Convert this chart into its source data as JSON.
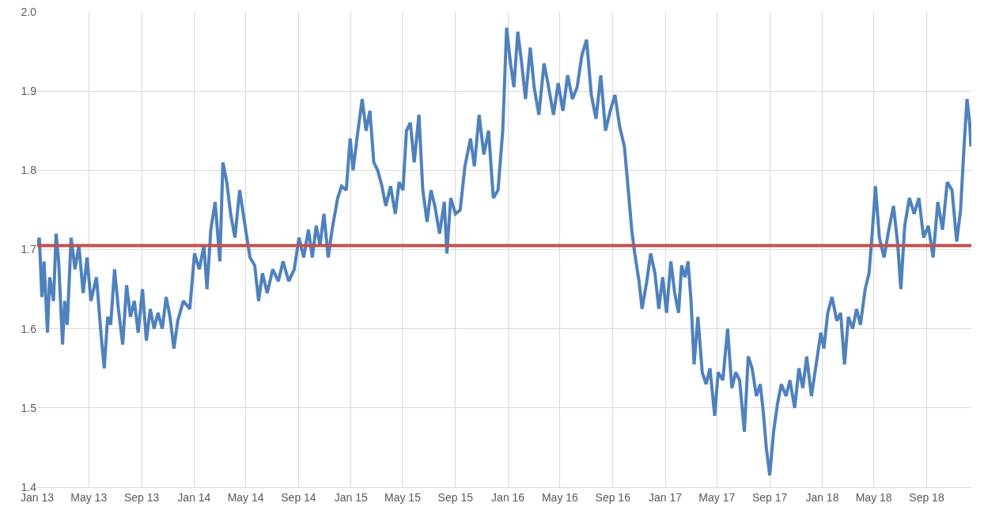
{
  "chart_data": {
    "type": "line",
    "x": [
      "2013-01-01",
      "2013-01-06",
      "2013-01-12",
      "2013-01-17",
      "2013-01-25",
      "2013-01-30",
      "2013-02-08",
      "2013-02-14",
      "2013-02-20",
      "2013-03-01",
      "2013-03-06",
      "2013-03-12",
      "2013-03-21",
      "2013-03-30",
      "2013-04-08",
      "2013-04-18",
      "2013-04-27",
      "2013-05-06",
      "2013-05-19",
      "2013-05-30",
      "2013-06-06",
      "2013-06-14",
      "2013-06-21",
      "2013-06-30",
      "2013-07-09",
      "2013-07-19",
      "2013-07-28",
      "2013-08-06",
      "2013-08-15",
      "2013-08-24",
      "2013-09-03",
      "2013-09-12",
      "2013-09-21",
      "2013-09-30",
      "2013-10-09",
      "2013-10-19",
      "2013-10-28",
      "2013-11-06",
      "2013-11-15",
      "2013-11-24",
      "2013-12-07",
      "2013-12-22",
      "2014-01-02",
      "2014-01-13",
      "2014-01-24",
      "2014-01-31",
      "2014-02-09",
      "2014-02-19",
      "2014-03-02",
      "2014-03-09",
      "2014-03-18",
      "2014-03-27",
      "2014-04-06",
      "2014-04-17",
      "2014-04-24",
      "2014-05-01",
      "2014-05-11",
      "2014-05-22",
      "2014-05-31",
      "2014-06-09",
      "2014-06-20",
      "2014-07-03",
      "2014-07-16",
      "2014-07-27",
      "2014-08-09",
      "2014-08-22",
      "2014-09-02",
      "2014-09-13",
      "2014-09-24",
      "2014-10-03",
      "2014-10-12",
      "2014-10-21",
      "2014-10-30",
      "2014-11-09",
      "2014-11-18",
      "2014-12-01",
      "2014-12-10",
      "2014-12-21",
      "2014-12-30",
      "2015-01-06",
      "2015-01-16",
      "2015-01-27",
      "2015-02-05",
      "2015-02-14",
      "2015-02-23",
      "2015-03-04",
      "2015-03-14",
      "2015-03-23",
      "2015-04-03",
      "2015-04-14",
      "2015-04-23",
      "2015-05-02",
      "2015-05-10",
      "2015-05-19",
      "2015-05-28",
      "2015-06-08",
      "2015-06-17",
      "2015-06-27",
      "2015-07-06",
      "2015-07-15",
      "2015-07-26",
      "2015-08-06",
      "2015-08-12",
      "2015-08-21",
      "2015-09-01",
      "2015-09-12",
      "2015-09-23",
      "2015-10-06",
      "2015-10-15",
      "2015-10-26",
      "2015-11-06",
      "2015-11-17",
      "2015-11-28",
      "2015-12-09",
      "2015-12-20",
      "2015-12-29",
      "2016-01-07",
      "2016-01-15",
      "2016-01-24",
      "2016-02-02",
      "2016-02-11",
      "2016-02-22",
      "2016-03-02",
      "2016-03-13",
      "2016-03-25",
      "2016-04-03",
      "2016-04-16",
      "2016-04-27",
      "2016-05-08",
      "2016-05-19",
      "2016-05-30",
      "2016-06-10",
      "2016-06-21",
      "2016-07-02",
      "2016-07-13",
      "2016-07-24",
      "2016-08-04",
      "2016-08-15",
      "2016-08-26",
      "2016-09-06",
      "2016-09-17",
      "2016-09-28",
      "2016-10-07",
      "2016-10-15",
      "2016-10-22",
      "2016-11-01",
      "2016-11-08",
      "2016-11-19",
      "2016-11-28",
      "2016-12-08",
      "2016-12-17",
      "2016-12-26",
      "2017-01-04",
      "2017-01-14",
      "2017-01-23",
      "2017-02-01",
      "2017-02-08",
      "2017-02-16",
      "2017-02-23",
      "2017-03-02",
      "2017-03-09",
      "2017-03-18",
      "2017-03-28",
      "2017-04-06",
      "2017-04-15",
      "2017-04-26",
      "2017-05-04",
      "2017-05-15",
      "2017-05-26",
      "2017-06-05",
      "2017-06-14",
      "2017-06-23",
      "2017-07-04",
      "2017-07-13",
      "2017-07-22",
      "2017-08-01",
      "2017-08-10",
      "2017-08-17",
      "2017-08-24",
      "2017-09-01",
      "2017-09-10",
      "2017-09-19",
      "2017-09-28",
      "2017-10-09",
      "2017-10-18",
      "2017-10-29",
      "2017-11-08",
      "2017-11-17",
      "2017-11-26",
      "2017-12-07",
      "2017-12-18",
      "2017-12-29",
      "2018-01-05",
      "2018-01-14",
      "2018-01-24",
      "2018-02-04",
      "2018-02-13",
      "2018-02-22",
      "2018-03-03",
      "2018-03-13",
      "2018-03-22",
      "2018-03-31",
      "2018-04-11",
      "2018-04-20",
      "2018-04-28",
      "2018-05-05",
      "2018-05-14",
      "2018-05-25",
      "2018-06-05",
      "2018-06-16",
      "2018-06-26",
      "2018-07-03",
      "2018-07-12",
      "2018-07-23",
      "2018-08-03",
      "2018-08-14",
      "2018-08-25",
      "2018-09-05",
      "2018-09-16",
      "2018-09-27",
      "2018-10-08",
      "2018-10-19",
      "2018-10-30",
      "2018-11-10",
      "2018-11-19",
      "2018-11-27",
      "2018-12-04",
      "2018-12-10",
      "2018-12-13"
    ],
    "series": [
      {
        "color": "#4f81bd",
        "values": [
          1.705,
          1.715,
          1.64,
          1.685,
          1.595,
          1.665,
          1.635,
          1.72,
          1.685,
          1.58,
          1.635,
          1.605,
          1.715,
          1.675,
          1.705,
          1.645,
          1.69,
          1.635,
          1.665,
          1.59,
          1.55,
          1.615,
          1.605,
          1.675,
          1.625,
          1.58,
          1.655,
          1.615,
          1.635,
          1.595,
          1.65,
          1.585,
          1.625,
          1.6,
          1.62,
          1.6,
          1.64,
          1.615,
          1.575,
          1.61,
          1.635,
          1.625,
          1.695,
          1.675,
          1.705,
          1.65,
          1.725,
          1.76,
          1.685,
          1.81,
          1.785,
          1.745,
          1.715,
          1.775,
          1.75,
          1.725,
          1.69,
          1.68,
          1.635,
          1.67,
          1.645,
          1.675,
          1.66,
          1.685,
          1.66,
          1.675,
          1.715,
          1.69,
          1.725,
          1.69,
          1.73,
          1.705,
          1.745,
          1.69,
          1.725,
          1.765,
          1.78,
          1.775,
          1.84,
          1.8,
          1.845,
          1.89,
          1.85,
          1.875,
          1.81,
          1.8,
          1.78,
          1.755,
          1.78,
          1.745,
          1.785,
          1.775,
          1.85,
          1.86,
          1.81,
          1.87,
          1.775,
          1.735,
          1.775,
          1.755,
          1.72,
          1.76,
          1.695,
          1.765,
          1.745,
          1.75,
          1.805,
          1.84,
          1.805,
          1.87,
          1.82,
          1.85,
          1.765,
          1.775,
          1.85,
          1.98,
          1.935,
          1.905,
          1.975,
          1.935,
          1.89,
          1.955,
          1.905,
          1.87,
          1.935,
          1.91,
          1.87,
          1.91,
          1.875,
          1.92,
          1.89,
          1.905,
          1.945,
          1.965,
          1.895,
          1.865,
          1.92,
          1.85,
          1.875,
          1.895,
          1.855,
          1.83,
          1.775,
          1.725,
          1.695,
          1.66,
          1.625,
          1.66,
          1.695,
          1.67,
          1.625,
          1.665,
          1.62,
          1.685,
          1.645,
          1.62,
          1.68,
          1.665,
          1.685,
          1.635,
          1.555,
          1.615,
          1.545,
          1.53,
          1.55,
          1.49,
          1.545,
          1.535,
          1.6,
          1.525,
          1.545,
          1.535,
          1.47,
          1.565,
          1.55,
          1.515,
          1.53,
          1.495,
          1.45,
          1.415,
          1.47,
          1.505,
          1.53,
          1.515,
          1.535,
          1.5,
          1.55,
          1.525,
          1.565,
          1.515,
          1.555,
          1.595,
          1.575,
          1.62,
          1.64,
          1.61,
          1.62,
          1.555,
          1.615,
          1.6,
          1.625,
          1.605,
          1.65,
          1.67,
          1.725,
          1.78,
          1.715,
          1.69,
          1.725,
          1.755,
          1.705,
          1.65,
          1.73,
          1.765,
          1.745,
          1.765,
          1.715,
          1.73,
          1.69,
          1.76,
          1.725,
          1.785,
          1.775,
          1.71,
          1.75,
          1.83,
          1.89,
          1.86,
          1.83
        ]
      }
    ],
    "xlim": [
      "2013-01-01",
      "2018-12-14"
    ],
    "xticks": [
      {
        "value": "2013-01-01",
        "label": "Jan 13"
      },
      {
        "value": "2013-05-01",
        "label": "May 13"
      },
      {
        "value": "2013-09-01",
        "label": "Sep 13"
      },
      {
        "value": "2014-01-01",
        "label": "Jan 14"
      },
      {
        "value": "2014-05-01",
        "label": "May 14"
      },
      {
        "value": "2014-09-01",
        "label": "Sep 14"
      },
      {
        "value": "2015-01-01",
        "label": "Jan 15"
      },
      {
        "value": "2015-05-01",
        "label": "May 15"
      },
      {
        "value": "2015-09-01",
        "label": "Sep 15"
      },
      {
        "value": "2016-01-01",
        "label": "Jan 16"
      },
      {
        "value": "2016-05-01",
        "label": "May 16"
      },
      {
        "value": "2016-09-01",
        "label": "Sep 16"
      },
      {
        "value": "2017-01-01",
        "label": "Jan 17"
      },
      {
        "value": "2017-05-01",
        "label": "May 17"
      },
      {
        "value": "2017-09-01",
        "label": "Sep 17"
      },
      {
        "value": "2018-01-01",
        "label": "Jan 18"
      },
      {
        "value": "2018-05-01",
        "label": "May 18"
      },
      {
        "value": "2018-09-01",
        "label": "Sep 18"
      }
    ],
    "ylim": [
      1.4,
      2.0
    ],
    "yticks": [
      {
        "value": 1.4,
        "label": "1.4"
      },
      {
        "value": 1.5,
        "label": "1.5"
      },
      {
        "value": 1.6,
        "label": "1.6"
      },
      {
        "value": 1.7,
        "label": "1.7"
      },
      {
        "value": 1.8,
        "label": "1.8"
      },
      {
        "value": 1.9,
        "label": "1.9"
      },
      {
        "value": 2.0,
        "label": "2.0"
      }
    ],
    "ref_lines": [
      {
        "axis": "y",
        "value": 1.705,
        "color": "#c0504d"
      }
    ],
    "grid": true,
    "line_style": "solid",
    "marker": "none"
  }
}
